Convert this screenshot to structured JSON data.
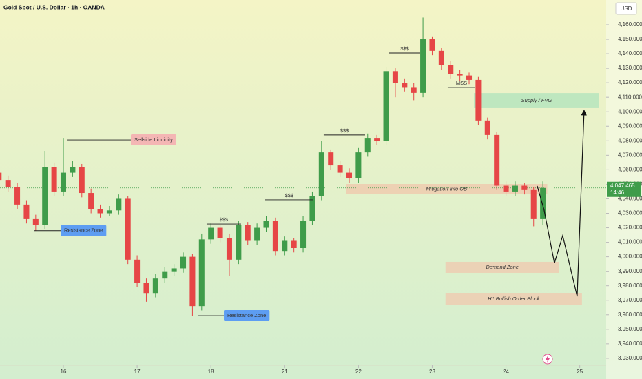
{
  "chart_data": {
    "type": "candlestick",
    "title": "Gold Spot / U.S. Dollar · 1h · OANDA",
    "currency": "USD",
    "up_color": "#3f9c4a",
    "down_color": "#e64646",
    "xlim": [
      -0.859,
      7.358
    ],
    "ylim": [
      3925.2,
      4177.1
    ],
    "xticks": [
      {
        "value": 0,
        "label": "16"
      },
      {
        "value": 1,
        "label": "17"
      },
      {
        "value": 2,
        "label": "18"
      },
      {
        "value": 3,
        "label": "21"
      },
      {
        "value": 4,
        "label": "22"
      },
      {
        "value": 5,
        "label": "23"
      },
      {
        "value": 6,
        "label": "24"
      },
      {
        "value": 7,
        "label": "25"
      }
    ],
    "yticks": [
      {
        "value": 3930,
        "label": "3,930.000"
      },
      {
        "value": 3940,
        "label": "3,940.000"
      },
      {
        "value": 3950,
        "label": "3,950.000"
      },
      {
        "value": 3960,
        "label": "3,960.000"
      },
      {
        "value": 3970,
        "label": "3,970.000"
      },
      {
        "value": 3980,
        "label": "3,980.000"
      },
      {
        "value": 3990,
        "label": "3,990.000"
      },
      {
        "value": 4000,
        "label": "4,000.000"
      },
      {
        "value": 4010,
        "label": "4,010.000"
      },
      {
        "value": 4020,
        "label": "4,020.000"
      },
      {
        "value": 4030,
        "label": "4,030.000"
      },
      {
        "value": 4040,
        "label": "4,040.000"
      },
      {
        "value": 4050,
        "label": "4,050.000"
      },
      {
        "value": 4060,
        "label": "4,060.000"
      },
      {
        "value": 4070,
        "label": "4,070.000"
      },
      {
        "value": 4080,
        "label": "4,080.000"
      },
      {
        "value": 4090,
        "label": "4,090.000"
      },
      {
        "value": 4100,
        "label": "4,100.000"
      },
      {
        "value": 4110,
        "label": "4,110.000"
      },
      {
        "value": 4120,
        "label": "4,120.000"
      },
      {
        "value": 4130,
        "label": "4,130.000"
      },
      {
        "value": 4140,
        "label": "4,140.000"
      },
      {
        "value": 4150,
        "label": "4,150.000"
      },
      {
        "value": 4160,
        "label": "4,160.000"
      }
    ],
    "x": [
      -0.875,
      -0.75,
      -0.625,
      -0.5,
      -0.375,
      -0.25,
      -0.125,
      0,
      0.125,
      0.25,
      0.375,
      0.5,
      0.625,
      0.75,
      0.875,
      1,
      1.125,
      1.25,
      1.375,
      1.5,
      1.625,
      1.75,
      1.875,
      2,
      2.125,
      2.25,
      2.375,
      2.5,
      2.625,
      2.75,
      2.875,
      3,
      3.125,
      3.25,
      3.375,
      3.5,
      3.625,
      3.75,
      3.875,
      4,
      4.125,
      4.25,
      4.375,
      4.5,
      4.625,
      4.75,
      4.875,
      5,
      5.125,
      5.25,
      5.375,
      5.5,
      5.625,
      5.75,
      5.875,
      6,
      6.125,
      6.25,
      6.375,
      6.5
    ],
    "open": [
      4058,
      4053,
      4048,
      4036,
      4026,
      4022,
      4062,
      4045,
      4058,
      4062,
      4044,
      4033,
      4030,
      4032,
      4040,
      3998,
      3982,
      3975,
      3985,
      3990,
      3992,
      4000,
      3966,
      4012,
      4020,
      4013,
      3998,
      4022,
      4011,
      4020,
      4025,
      4004,
      4011,
      4006,
      4025,
      4042,
      4072,
      4063,
      4058,
      4054,
      4072,
      4082,
      4080,
      4128,
      4120,
      4117,
      4113,
      4150,
      4142,
      4132,
      4126,
      4125,
      4122,
      4094,
      4084,
      4049,
      4045,
      4049,
      4046,
      4026
    ],
    "high": [
      4061,
      4056,
      4051,
      4039,
      4029,
      4073,
      4065,
      4082,
      4066,
      4064,
      4047,
      4036,
      4035,
      4043,
      4042,
      4001,
      3985,
      3988,
      3993,
      3995,
      4003,
      4002,
      4016,
      4023,
      4022,
      4016,
      4025,
      4024,
      4023,
      4028,
      4027,
      4014,
      4013,
      4028,
      4045,
      4080,
      4074,
      4066,
      4061,
      4075,
      4085,
      4084,
      4131,
      4130,
      4123,
      4120,
      4165,
      4152,
      4144,
      4135,
      4129,
      4127,
      4124,
      4096,
      4086,
      4052,
      4052,
      4051,
      4048,
      4052
    ],
    "low": [
      4050,
      4045,
      4033,
      4023,
      4018,
      4019,
      4042,
      4042,
      4055,
      4041,
      4030,
      4027,
      4028,
      4029,
      3995,
      3979,
      3969,
      3972,
      3982,
      3987,
      3989,
      3959.4,
      3963,
      4009,
      4010,
      3987,
      3995,
      4008,
      4008,
      4017,
      4001,
      4001,
      4003,
      4003,
      4022,
      4039,
      4060,
      4055,
      4051,
      4051,
      4069,
      4077,
      4077,
      4110,
      4114,
      4108,
      4110,
      4139,
      4129,
      4123,
      4121,
      4119,
      4091,
      4081,
      4046,
      4042,
      4042,
      4043,
      4021,
      4022
    ],
    "close": [
      4053,
      4048,
      4036,
      4026,
      4022,
      4062,
      4045,
      4058,
      4062,
      4044,
      4033,
      4030,
      4032,
      4040,
      3998,
      3982,
      3975,
      3985,
      3990,
      3992,
      4000,
      3966,
      4012,
      4020,
      4013,
      3998,
      4022,
      4011,
      4020,
      4025,
      4004,
      4011,
      4006,
      4025,
      4042,
      4072,
      4063,
      4058,
      4054,
      4072,
      4082,
      4080,
      4128,
      4120,
      4117,
      4113,
      4150,
      4142,
      4132,
      4126,
      4125,
      4122,
      4094,
      4084,
      4049,
      4045,
      4049,
      4046,
      4026,
      4047.465
    ],
    "price_label": {
      "value": 4047.465,
      "label": "4,047.465"
    },
    "countdown": "14:46",
    "zones": [
      {
        "label": "Mitigation Into OB",
        "color": "#efc9ad",
        "x": [
          3.83,
          6.56
        ],
        "y": [
          4043.1,
          4050.2
        ]
      },
      {
        "label": "Supply / FVG",
        "color": "#b3e3bd",
        "x": [
          5.565,
          7.264
        ],
        "y": [
          4102.5,
          4112.9
        ]
      },
      {
        "label": "Demand Zone",
        "color": "#efcbb0",
        "x": [
          5.18,
          6.72
        ],
        "y": [
          3988.9,
          3996.5
        ]
      },
      {
        "label": "H1 Bullish Order Block",
        "color": "#efcbb0",
        "x": [
          5.18,
          7.03
        ],
        "y": [
          3966.6,
          3975.1
        ]
      }
    ],
    "levels": [
      {
        "text": "Sellside Liquidity",
        "box": "#f4b6b4",
        "x": [
          0.047,
          0.915
        ],
        "y": 4080.6
      },
      {
        "text": "Resistance Zone",
        "box": "#5d9df2",
        "x": [
          -0.392,
          -0.037
        ],
        "y": 4018
      },
      {
        "text": "Resistance Zone",
        "box": "#5d9df2",
        "x": [
          1.821,
          2.176
        ],
        "y": 3959.4
      },
      {
        "text": "$$$",
        "x": [
          1.942,
          2.409
        ],
        "y": 4022.6
      },
      {
        "text": "$$$",
        "x": [
          2.736,
          3.389
        ],
        "y": 4039.3
      },
      {
        "text": "$$$",
        "x": [
          3.529,
          4.09
        ],
        "y": 4084
      },
      {
        "text": "$$$",
        "x": [
          4.416,
          4.837
        ],
        "y": 4140.5
      },
      {
        "text": "MSS",
        "x": [
          5.21,
          5.584
        ],
        "y": 4116.7
      }
    ],
    "projection": {
      "x": [
        6.424,
        6.517,
        6.657,
        6.769,
        6.965,
        7.059
      ],
      "y": [
        4048.8,
        4032.2,
        3995.6,
        4014.6,
        3972.7,
        4101.1
      ]
    }
  }
}
